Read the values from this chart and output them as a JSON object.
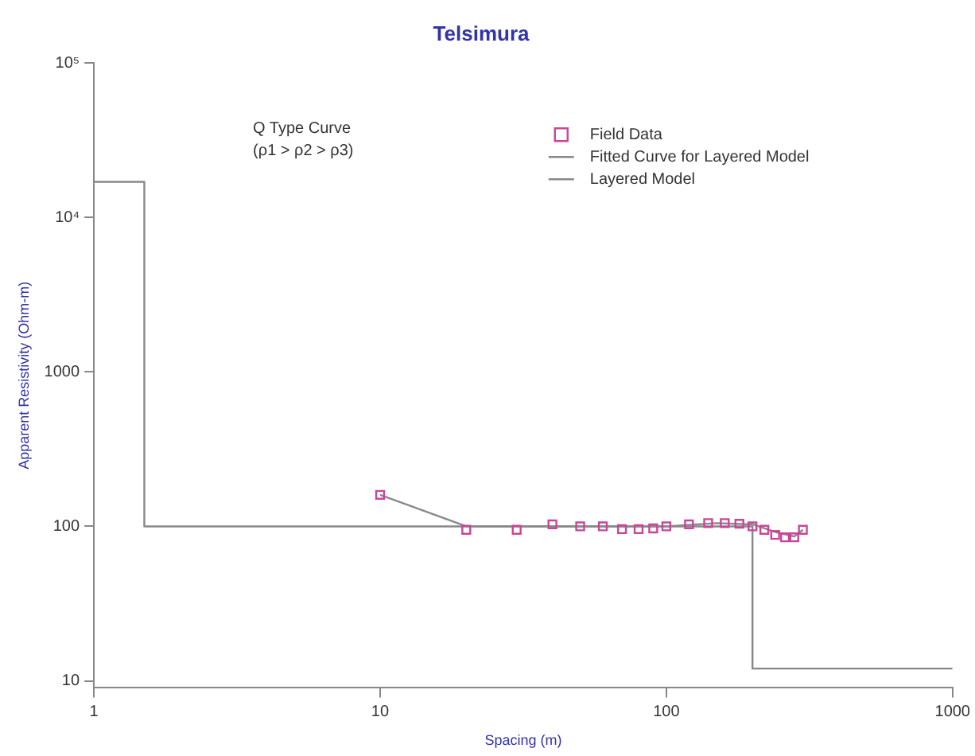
{
  "chart_data": {
    "type": "scatter",
    "title": "Telsimura",
    "xlabel": "Spacing (m)",
    "ylabel": "Apparent Resistivity (Ohm-m)",
    "log": "xy",
    "xlim": [
      1,
      1000
    ],
    "xticks": [
      1,
      10,
      100,
      1000
    ],
    "ylim": [
      9,
      100000
    ],
    "yticks": [
      10,
      100,
      1000,
      {
        "value": 10000,
        "label": "10⁴"
      },
      {
        "value": 100000,
        "label": "10⁵"
      }
    ],
    "grid": false,
    "legend": "top right",
    "annotations": [
      "Q Type Curve",
      "(ρ1 > ρ2 > ρ3)"
    ],
    "series": [
      {
        "name": "Field Data",
        "marker": "square",
        "color": "#cc4499",
        "x": [
          10,
          20,
          30,
          40,
          50,
          60,
          70,
          80,
          90,
          100,
          120,
          140,
          160,
          180,
          200,
          220,
          240,
          260,
          280,
          300
        ],
        "values": [
          160,
          95,
          95,
          103,
          100,
          100,
          96,
          96,
          97,
          100,
          103,
          105,
          105,
          104,
          100,
          95,
          88,
          85,
          85,
          95
        ]
      },
      {
        "name": "Fitted Curve for Layered Model",
        "type": "line",
        "marker": "none",
        "color": "#888888",
        "x": [
          10,
          20,
          40,
          100,
          150,
          200,
          240,
          280,
          300
        ],
        "values": [
          160,
          100,
          100,
          100,
          105,
          103,
          92,
          86,
          95
        ]
      },
      {
        "name": "Layered Model",
        "type": "line",
        "marker": "none",
        "color": "#888888",
        "x": [
          1,
          1.5,
          1.5,
          200,
          200,
          1000
        ],
        "values": [
          17000,
          17000,
          100,
          100,
          12,
          12
        ]
      }
    ]
  }
}
